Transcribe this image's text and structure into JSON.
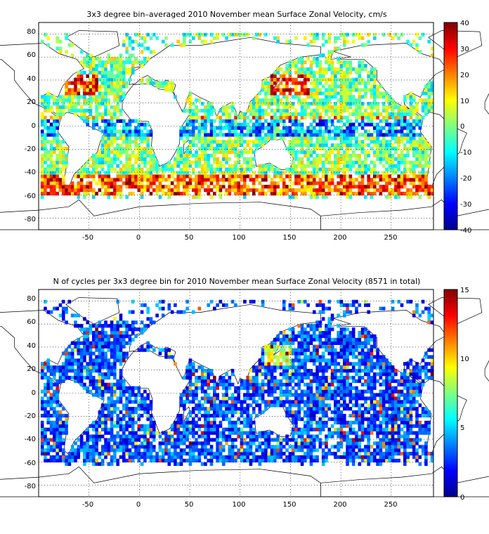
{
  "chart_data": [
    {
      "type": "heatmap",
      "title": "3x3 degree bin–averaged 2010 November mean Surface Zonal Velocity, cm/s",
      "xlabel": "",
      "ylabel": "",
      "xlim": [
        -100,
        292
      ],
      "ylim": [
        -90,
        90
      ],
      "x_ticks": [
        "-50",
        "0",
        "50",
        "100",
        "150",
        "200",
        "250"
      ],
      "y_ticks": [
        "80",
        "60",
        "40",
        "20",
        "0",
        "-20",
        "-40",
        "-60",
        "-80"
      ],
      "colorbar": {
        "min": -40,
        "max": 40,
        "ticks": [
          "40",
          "30",
          "20",
          "10",
          "0",
          "-10",
          "-20",
          "-30",
          "-40"
        ],
        "colormap": "jet"
      },
      "grid": "dotted",
      "bin_size_deg": 3
    },
    {
      "type": "heatmap",
      "title": "N of cycles per 3x3 degree bin for 2010 November mean Surface Zonal Velocity (8571 in total)",
      "xlabel": "",
      "ylabel": "",
      "xlim": [
        -100,
        292
      ],
      "ylim": [
        -90,
        90
      ],
      "x_ticks": [
        "-50",
        "0",
        "50",
        "100",
        "150",
        "200",
        "250"
      ],
      "y_ticks": [
        "80",
        "60",
        "40",
        "20",
        "0",
        "-20",
        "-40",
        "-60",
        "-80"
      ],
      "colorbar": {
        "min": 0,
        "max": 15,
        "ticks": [
          "15",
          "10",
          "5",
          "0"
        ],
        "colormap": "jet"
      },
      "grid": "dotted",
      "bin_size_deg": 3
    }
  ]
}
